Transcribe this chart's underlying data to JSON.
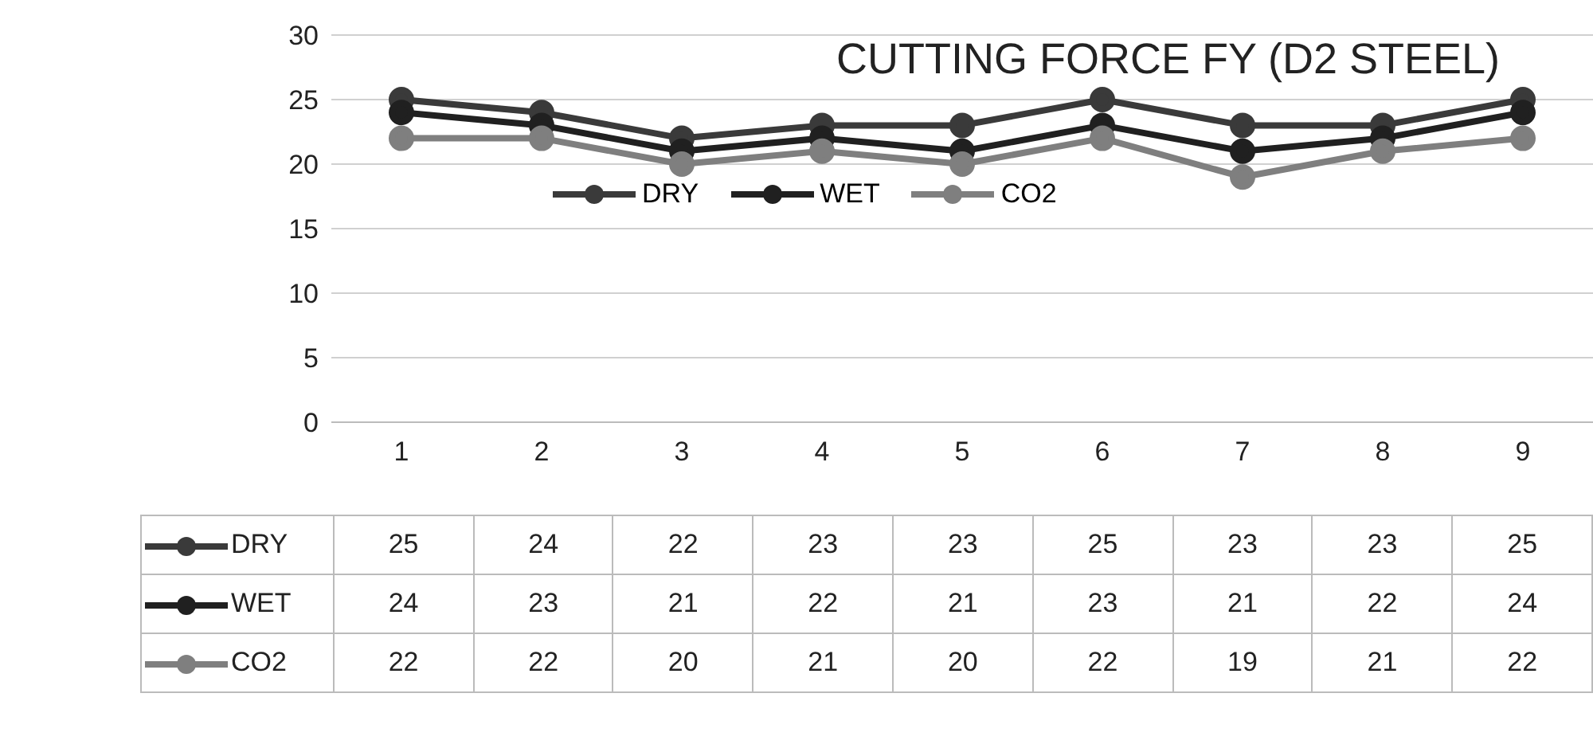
{
  "chart_data": {
    "type": "line",
    "title": "CUTTING FORCE FY (D2 STEEL)",
    "categories": [
      "1",
      "2",
      "3",
      "4",
      "5",
      "6",
      "7",
      "8",
      "9"
    ],
    "series": [
      {
        "name": "DRY",
        "color": "#3a3a3a",
        "values": [
          25,
          24,
          22,
          23,
          23,
          25,
          23,
          23,
          25
        ]
      },
      {
        "name": "WET",
        "color": "#202020",
        "values": [
          24,
          23,
          21,
          22,
          21,
          23,
          21,
          22,
          24
        ]
      },
      {
        "name": "CO2",
        "color": "#7f7f7f",
        "values": [
          22,
          22,
          20,
          21,
          20,
          22,
          19,
          21,
          22
        ]
      }
    ],
    "ylim": [
      0,
      30
    ],
    "yticks": [
      0,
      5,
      10,
      15,
      20,
      25,
      30
    ],
    "grid": "y",
    "legend": "top",
    "marker": "circle",
    "line_style": "solid",
    "data_labels": true
  }
}
